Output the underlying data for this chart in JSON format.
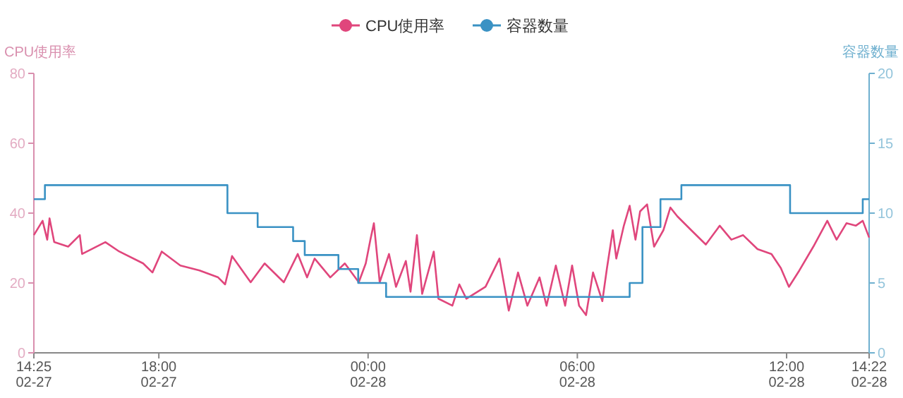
{
  "chart_data": {
    "type": "line",
    "ylabel": "CPU使用率",
    "y2label": "容器数量",
    "legend": "top",
    "xlim": [
      "--02-27T14:25",
      "--02-28T14:22"
    ],
    "xticks": [
      {
        "value": "--02-27T14:25",
        "label": "14:25\n02-27"
      },
      {
        "value": "--02-27T18:00",
        "label": "18:00\n02-27"
      },
      {
        "value": "--02-28T00:00",
        "label": "00:00\n02-28"
      },
      {
        "value": "--02-28T06:00",
        "label": "06:00\n02-28"
      },
      {
        "value": "--02-28T12:00",
        "label": "12:00\n02-28"
      },
      {
        "value": "--02-28T14:22",
        "label": "14:22\n02-28"
      }
    ],
    "ylim": [
      0,
      80
    ],
    "yticks": [
      0,
      20,
      40,
      60,
      80
    ],
    "y2lim": [
      0,
      20
    ],
    "y2ticks": [
      0,
      5,
      10,
      15,
      20
    ],
    "series": [
      {
        "name": "CPU使用率",
        "type": "line",
        "color": "#e0467c",
        "x": [
          "--02-27T14:25",
          "--02-27T14:40",
          "--02-27T14:48",
          "--02-27T14:52",
          "--02-27T15:00",
          "--02-27T15:24",
          "--02-27T15:44",
          "--02-27T15:48",
          "--02-27T16:28",
          "--02-27T16:52",
          "--02-27T17:33",
          "--02-27T17:49",
          "--02-27T18:05",
          "--02-27T18:37",
          "--02-27T19:10",
          "--02-27T19:42",
          "--02-27T19:54",
          "--02-27T20:06",
          "--02-27T20:38",
          "--02-27T21:02",
          "--02-27T21:35",
          "--02-27T21:59",
          "--02-27T22:15",
          "--02-27T22:28",
          "--02-27T22:55",
          "--02-27T23:20",
          "--02-27T23:44",
          "--02-27T23:56",
          "--02-28T00:04",
          "--02-28T00:10",
          "--02-28T00:20",
          "--02-28T00:36",
          "--02-28T00:48",
          "--02-28T01:05",
          "--02-28T01:13",
          "--02-28T01:24",
          "--02-28T01:33",
          "--02-28T01:53",
          "--02-28T02:01",
          "--02-28T02:25",
          "--02-28T02:37",
          "--02-28T02:49",
          "--02-28T03:22",
          "--02-28T03:46",
          "--02-28T04:02",
          "--02-28T04:18",
          "--02-28T04:34",
          "--02-28T04:55",
          "--02-28T05:07",
          "--02-28T05:23",
          "--02-28T05:39",
          "--02-28T05:51",
          "--02-28T06:03",
          "--02-28T06:15",
          "--02-28T06:27",
          "--02-28T06:43",
          "--02-28T06:51",
          "--02-28T07:01",
          "--02-28T07:07",
          "--02-28T07:20",
          "--02-28T07:30",
          "--02-28T07:40",
          "--02-28T07:48",
          "--02-28T08:00",
          "--02-28T08:12",
          "--02-28T08:28",
          "--02-28T08:40",
          "--02-28T08:52",
          "--02-28T09:16",
          "--02-28T09:41",
          "--02-28T10:05",
          "--02-28T10:25",
          "--02-28T10:45",
          "--02-28T11:10",
          "--02-28T11:34",
          "--02-28T11:50",
          "--02-28T12:04",
          "--02-28T12:22",
          "--02-28T12:46",
          "--02-28T13:10",
          "--02-28T13:26",
          "--02-28T13:43",
          "--02-28T13:59",
          "--02-28T14:11",
          "--02-28T14:22"
        ],
        "values": [
          33.7,
          37.8,
          32.4,
          38.5,
          31.7,
          30.4,
          33.7,
          28.3,
          31.7,
          29,
          25.6,
          23,
          29,
          25,
          23.6,
          21.6,
          19.6,
          27.7,
          20.2,
          25.6,
          20.2,
          28.3,
          21.6,
          27,
          21.6,
          25.6,
          20.2,
          25.6,
          32.4,
          37.1,
          20.2,
          28.3,
          18.9,
          26.3,
          17.5,
          33.7,
          16.9,
          29,
          15.5,
          13.5,
          19.6,
          15.5,
          18.9,
          27,
          12.1,
          23,
          13.5,
          21.6,
          13.5,
          25,
          13.5,
          25,
          13.5,
          10.8,
          23,
          14.8,
          24.3,
          35.1,
          27,
          36.4,
          42.1,
          32.4,
          40.5,
          42.5,
          30.4,
          35.1,
          41.6,
          39.1,
          35.1,
          31,
          36.4,
          32.4,
          33.7,
          29.7,
          28.3,
          24.3,
          18.9,
          23.6,
          30.4,
          37.8,
          32.4,
          37.1,
          36.4,
          37.8,
          33
        ]
      },
      {
        "name": "容器数量",
        "type": "step",
        "axis": "y2",
        "color": "#3a92c4",
        "x": [
          "--02-27T14:25",
          "--02-27T14:44",
          "--02-27T19:58",
          "--02-27T20:50",
          "--02-27T21:51",
          "--02-27T22:11",
          "--02-27T23:09",
          "--02-27T23:43",
          "--02-28T00:31",
          "--02-28T07:30",
          "--02-28T07:52",
          "--02-28T08:23",
          "--02-28T08:59",
          "--02-28T12:06",
          "--02-28T14:11",
          "--02-28T14:22"
        ],
        "values": [
          11,
          12,
          10,
          9,
          8,
          7,
          6,
          5,
          4,
          5,
          9,
          11,
          12,
          10,
          11,
          11
        ]
      }
    ]
  }
}
